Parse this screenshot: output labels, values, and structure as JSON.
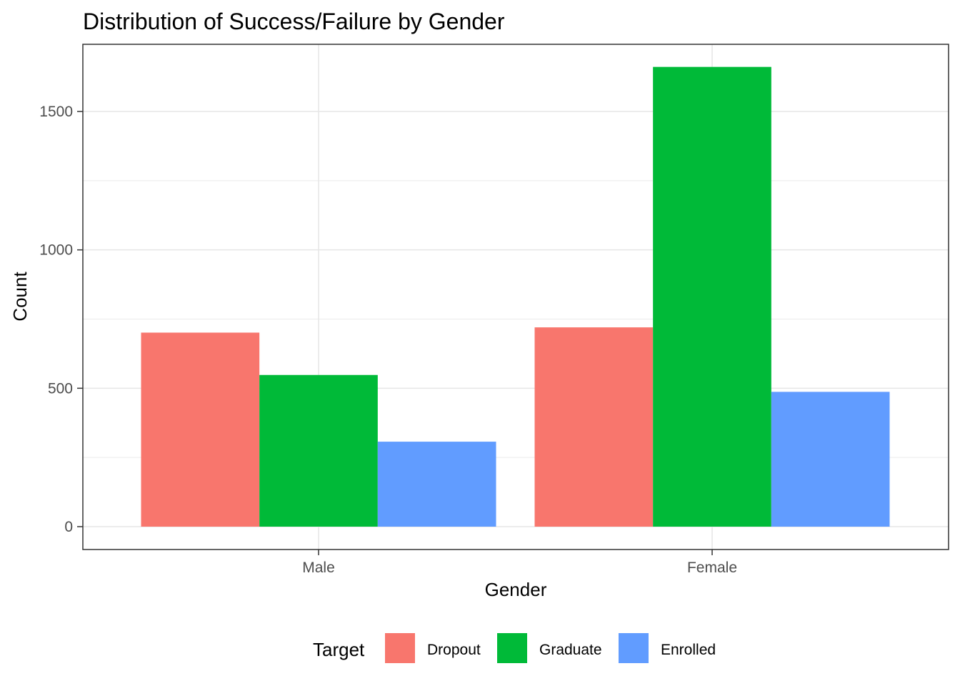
{
  "chart_data": {
    "type": "bar",
    "title": "Distribution of Success/Failure by Gender",
    "xlabel": "Gender",
    "ylabel": "Count",
    "categories": [
      "Male",
      "Female"
    ],
    "series": [
      {
        "name": "Dropout",
        "values": [
          701,
          720
        ],
        "color": "#F8766D"
      },
      {
        "name": "Graduate",
        "values": [
          548,
          1661
        ],
        "color": "#00BA38"
      },
      {
        "name": "Enrolled",
        "values": [
          307,
          487
        ],
        "color": "#619CFF"
      }
    ],
    "ylim": [
      0,
      1750
    ],
    "yticks": [
      0,
      500,
      1000,
      1500
    ],
    "grid": true,
    "legend": {
      "title": "Target",
      "position": "bottom"
    }
  }
}
